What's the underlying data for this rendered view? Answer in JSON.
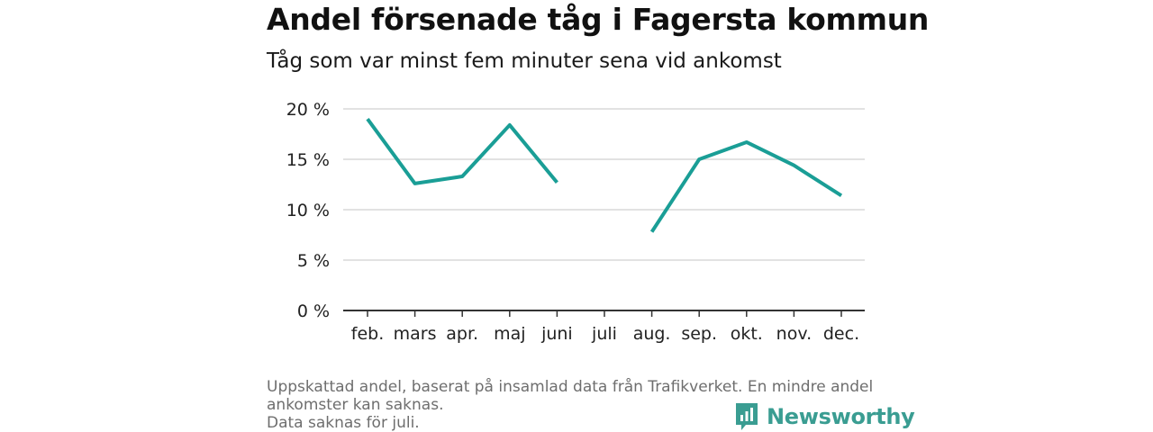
{
  "chart_data": {
    "type": "line",
    "title": "Andel försenade tåg i Fagersta kommun",
    "subtitle": "Tåg som var minst fem minuter sena vid ankomst",
    "categories": [
      "feb.",
      "mars",
      "apr.",
      "maj",
      "juni",
      "juli",
      "aug.",
      "sep.",
      "okt.",
      "nov.",
      "dec."
    ],
    "series": [
      {
        "values": [
          19.0,
          12.6,
          13.3,
          18.4,
          12.7,
          null,
          7.8,
          15.0,
          16.7,
          14.4,
          11.4
        ],
        "color": "#1a9e96"
      }
    ],
    "ylim": [
      0,
      20
    ],
    "yticks": [
      0,
      5,
      10,
      15,
      20
    ],
    "ytick_labels": [
      "0 %",
      "5 %",
      "10 %",
      "15 %",
      "20 %"
    ],
    "grid": true,
    "xlabel": "",
    "ylabel": ""
  },
  "notes": {
    "line1": "Uppskattad andel, baserat på insamlad data från Trafikverket. En mindre andel ankomster kan saknas.",
    "line2": "Data saknas för juli."
  },
  "branding": {
    "logo_text": "Newsworthy",
    "logo_icon": "bar-chart-speech-icon",
    "color": "#3a9d92"
  }
}
